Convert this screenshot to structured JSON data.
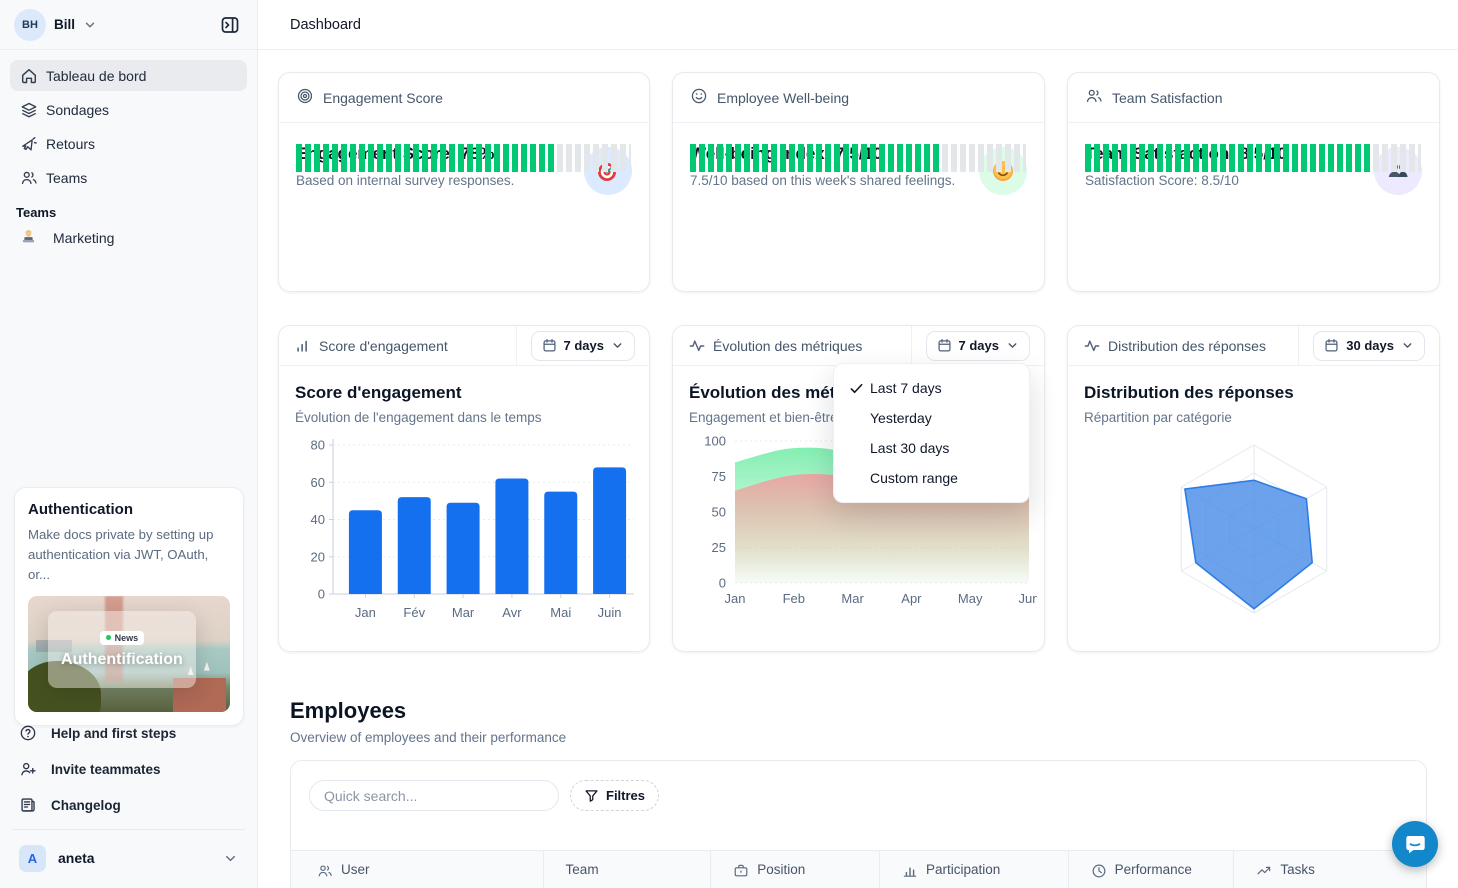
{
  "sidebar": {
    "user": {
      "initials": "BH",
      "name": "Bill"
    },
    "nav": [
      {
        "icon": "home",
        "label": "Tableau de bord",
        "active": true
      },
      {
        "icon": "layers",
        "label": "Sondages",
        "active": false
      },
      {
        "icon": "megaphone",
        "label": "Retours",
        "active": false
      },
      {
        "icon": "users",
        "label": "Teams",
        "active": false
      }
    ],
    "teams_section": {
      "label": "Teams",
      "items": [
        {
          "icon": "technologist-emoji",
          "label": "Marketing"
        }
      ]
    },
    "promo_card": {
      "title": "Authentication",
      "description": "Make docs private by setting up authentication via JWT, OAuth, or...",
      "badge": "News",
      "image_caption": "Authentification"
    },
    "footer": [
      {
        "icon": "help-circle",
        "label": "Help and first steps"
      },
      {
        "icon": "user-plus",
        "label": "Invite teammates"
      },
      {
        "icon": "changelog",
        "label": "Changelog"
      }
    ],
    "workspace": {
      "initial": "A",
      "name": "aneta"
    }
  },
  "header": {
    "title": "Dashboard"
  },
  "stats": [
    {
      "header": "Engagement Score",
      "header_icon": "target",
      "title": "Engagement Score: 78%",
      "subtitle": "Based on internal survey responses.",
      "emoji": "dart-target",
      "badge_bg": "#dbeafe",
      "progress_pct": 78,
      "progress_color": "#02c873"
    },
    {
      "header": "Employee Well-being",
      "header_icon": "smile",
      "title": "Well-being Index: 7.5/10",
      "subtitle": "7.5/10 based on this week's shared feelings.",
      "emoji": "smiling-face",
      "badge_bg": "#dcfce7",
      "progress_pct": 75,
      "progress_color": "#02c873"
    },
    {
      "header": "Team Satisfaction",
      "header_icon": "users",
      "title": "Team Satisfaction: 8.5/10",
      "subtitle": "Satisfaction Score: 8.5/10",
      "emoji": "two-busts",
      "badge_bg": "#ede9fe",
      "progress_pct": 85,
      "progress_color": "#02c873"
    }
  ],
  "charts": [
    {
      "header": "Score d'engagement",
      "header_icon": "bar-chart",
      "range_label": "7 days",
      "title": "Score d'engagement",
      "subtitle": "Évolution de l'engagement dans le temps"
    },
    {
      "header": "Évolution des métriques",
      "header_icon": "activity",
      "range_label": "7 days",
      "title": "Évolution des métriques",
      "subtitle": "Engagement et bien-être"
    },
    {
      "header": "Distribution des réponses",
      "header_icon": "activity",
      "range_label": "30 days",
      "title": "Distribution des réponses",
      "subtitle": "Répartition par catégorie"
    }
  ],
  "dropdown": {
    "items": [
      {
        "label": "Last 7 days",
        "checked": true
      },
      {
        "label": "Yesterday",
        "checked": false
      },
      {
        "label": "Last 30 days",
        "checked": false
      },
      {
        "label": "Custom range",
        "checked": false
      }
    ]
  },
  "employees": {
    "title": "Employees",
    "subtitle": "Overview of employees and their performance",
    "search_placeholder": "Quick search...",
    "filters_label": "Filtres",
    "columns": [
      {
        "icon": "users",
        "label": "User"
      },
      {
        "icon": "",
        "label": "Team"
      },
      {
        "icon": "briefcase",
        "label": "Position"
      },
      {
        "icon": "bar-chart",
        "label": "Participation"
      },
      {
        "icon": "clock",
        "label": "Performance"
      },
      {
        "icon": "trending-up",
        "label": "Tasks"
      }
    ]
  },
  "chart_data": [
    {
      "type": "bar",
      "title": "Score d'engagement",
      "categories": [
        "Jan",
        "Fév",
        "Mar",
        "Avr",
        "Mai",
        "Juin"
      ],
      "values": [
        45,
        52,
        49,
        62,
        55,
        68
      ],
      "ylim": [
        0,
        80
      ],
      "yticks": [
        0,
        20,
        40,
        60,
        80
      ],
      "bar_color": "#1570ef",
      "grid": true,
      "legend": "none"
    },
    {
      "type": "area",
      "title": "Évolution des métriques",
      "x": [
        "Jan",
        "Feb",
        "Mar",
        "Apr",
        "May",
        "Jun"
      ],
      "series": [
        {
          "name": "engagement",
          "color": "#7deead",
          "values": [
            85,
            95,
            90,
            62,
            68,
            65
          ]
        },
        {
          "name": "bien-être",
          "color": "#eda2a2",
          "values": [
            65,
            76,
            74,
            60,
            63,
            63
          ]
        }
      ],
      "ylim": [
        0,
        100
      ],
      "yticks": [
        0,
        25,
        50,
        75,
        100
      ],
      "grid": true,
      "legend": "none"
    },
    {
      "type": "radar",
      "title": "Distribution des réponses",
      "axes": 6,
      "max": 100,
      "grid_levels": 3,
      "values": [
        58,
        72,
        80,
        95,
        80,
        95
      ],
      "fill_color": "#478be6",
      "stroke_color": "#2e7ce4"
    }
  ]
}
